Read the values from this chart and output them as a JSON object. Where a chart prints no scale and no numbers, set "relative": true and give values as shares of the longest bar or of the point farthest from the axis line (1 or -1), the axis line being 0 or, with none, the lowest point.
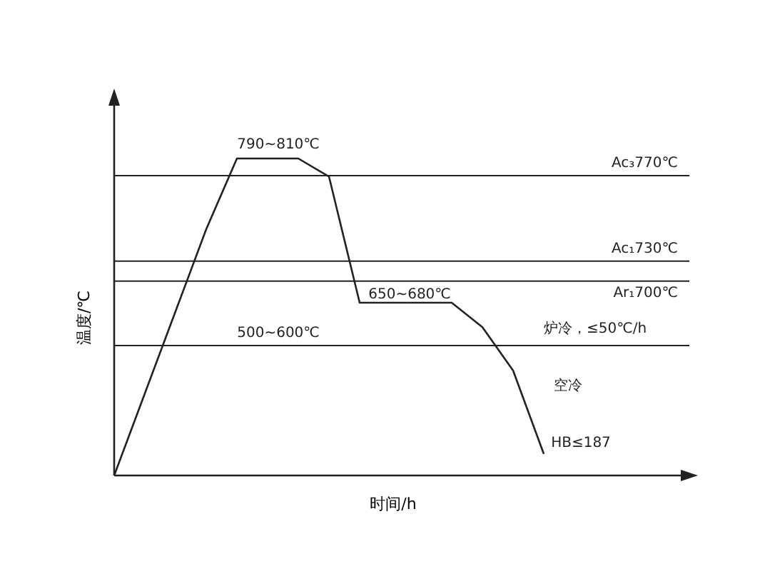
{
  "chart_data": {
    "type": "line",
    "relative": true,
    "xlabel": "时间/h",
    "ylabel": "温度/℃",
    "categories": [
      null,
      null,
      null,
      null,
      null,
      null,
      null,
      null,
      null,
      null,
      null,
      null,
      null,
      null,
      null
    ],
    "series": [
      {
        "color": "#222222",
        "values": [
          0,
          0.259,
          0.518,
          0.777,
          1,
          1,
          1,
          0.943,
          0.545,
          0.545,
          0.545,
          0.545,
          0.468,
          0.331,
          0.068
        ]
      }
    ],
    "ref_lines": [
      {
        "axis": "y",
        "value": 0.946,
        "label": "Ac₃770℃"
      },
      {
        "axis": "y",
        "value": 0.676,
        "label": "Ac₁730℃"
      },
      {
        "axis": "y",
        "value": 0.613,
        "label": "Ar₁700℃"
      },
      {
        "axis": "y",
        "value": 0.41
      }
    ],
    "annotations": [
      "790~810℃",
      "650~680℃",
      "500~600℃",
      "炉冷，≤50℃/h",
      "空冷",
      "HB≤187"
    ],
    "grid": false
  }
}
